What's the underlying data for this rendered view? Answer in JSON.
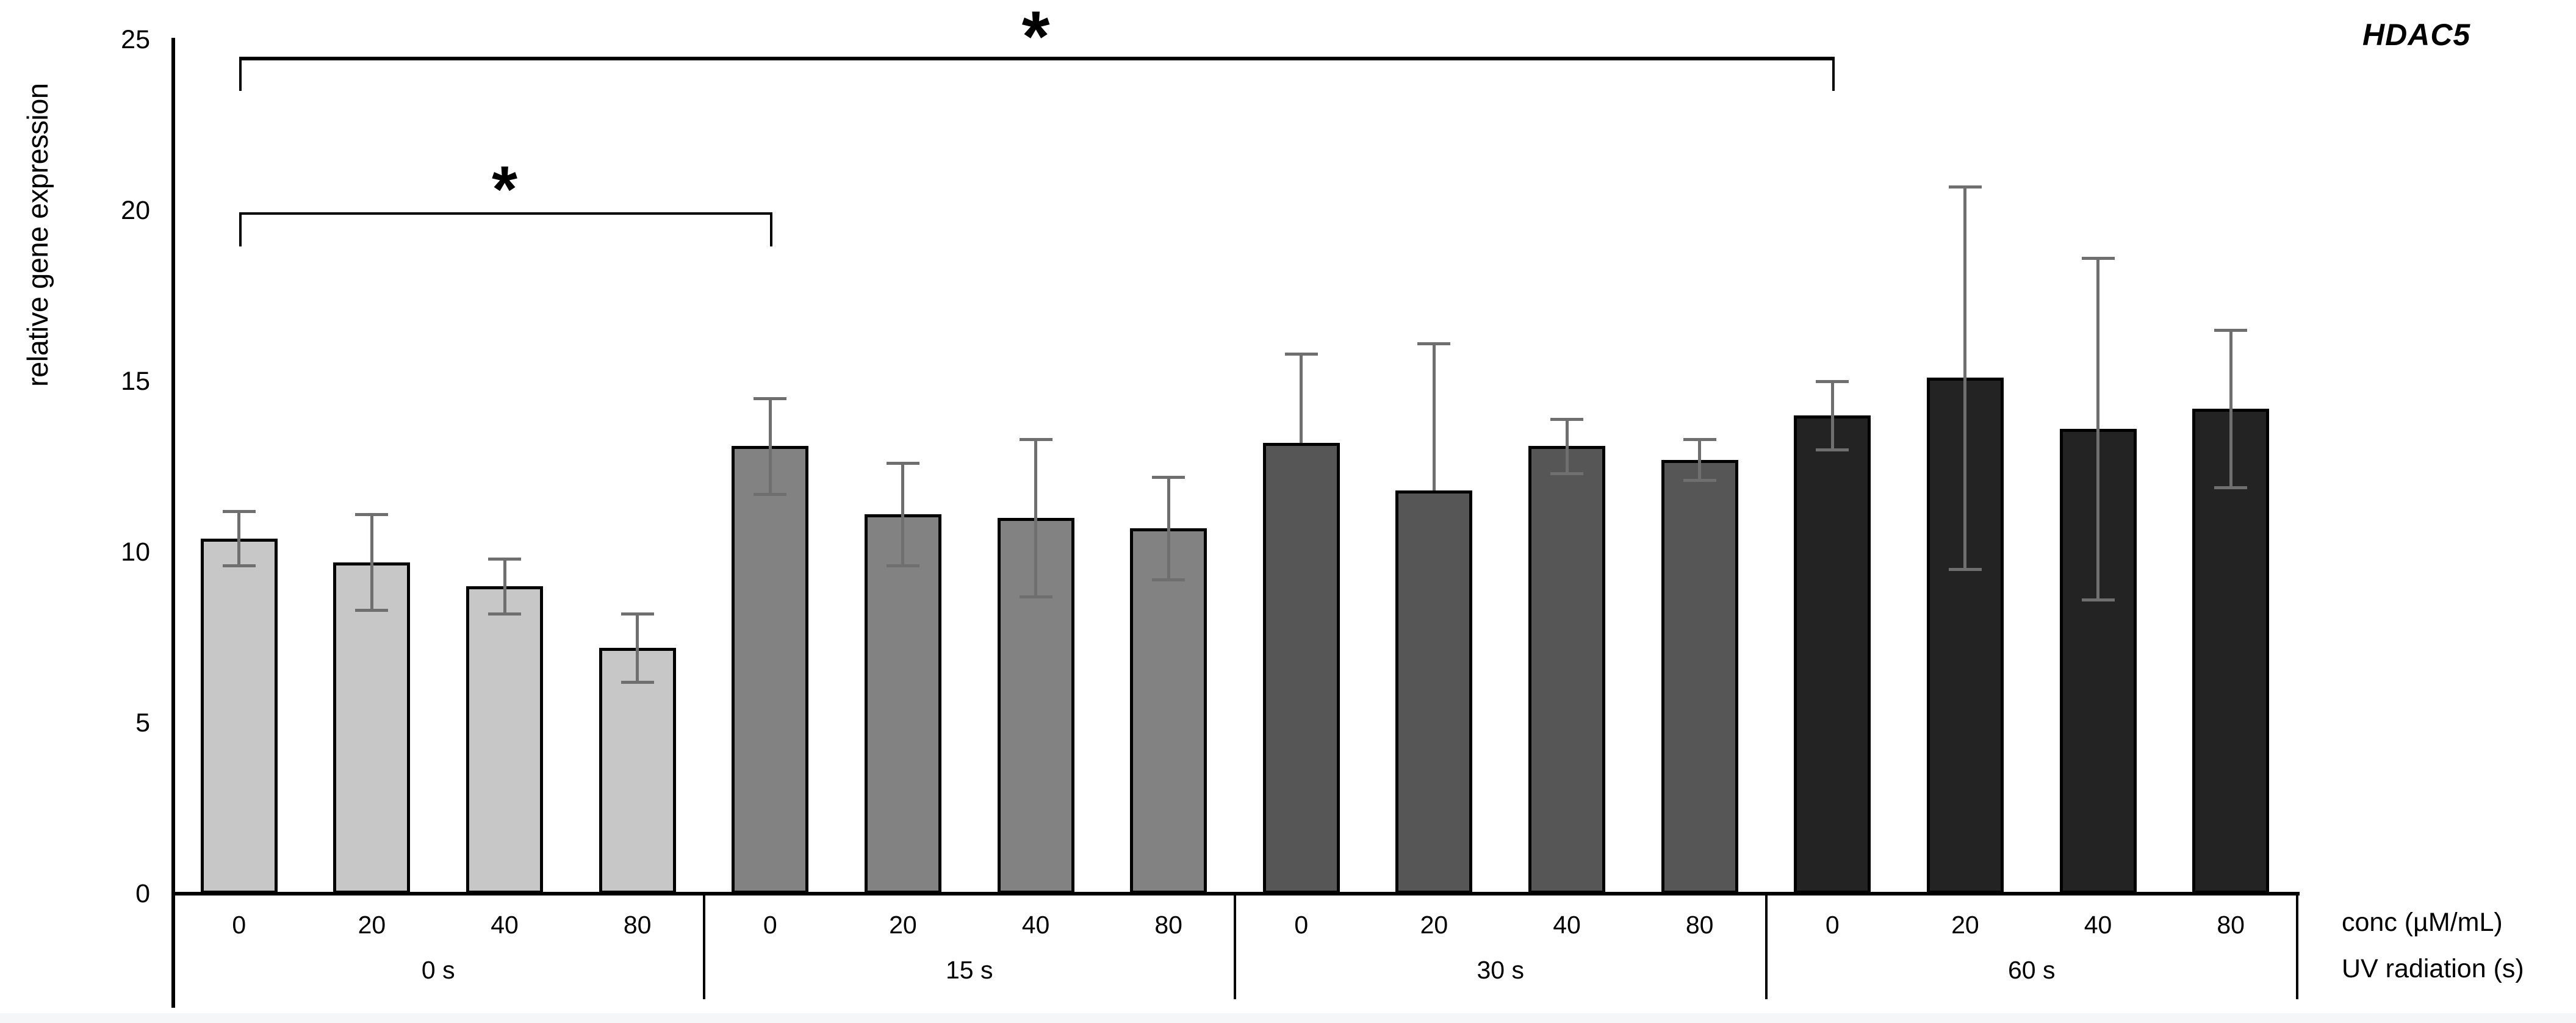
{
  "title": "HDAC5",
  "chart_data": {
    "type": "bar",
    "title": "HDAC5",
    "ylabel": "relative gene expression",
    "ylim": [
      0,
      25
    ],
    "yticks": [
      0,
      5,
      10,
      15,
      20,
      25
    ],
    "bar_axis_label": "conc (µM/mL)",
    "group_axis_label": "UV radiation (s)",
    "grid": false,
    "legend": "none",
    "error_bar_color": "#6f6f6f",
    "categories": [
      "0",
      "20",
      "40",
      "80"
    ],
    "groups": [
      {
        "label": "0 s",
        "color": "#c7c7c7",
        "bars": [
          {
            "conc": "0",
            "value": 10.4,
            "err_up": 0.8,
            "err_down": 0.8
          },
          {
            "conc": "20",
            "value": 9.7,
            "err_up": 1.4,
            "err_down": 1.4
          },
          {
            "conc": "40",
            "value": 9.0,
            "err_up": 0.8,
            "err_down": 0.8
          },
          {
            "conc": "80",
            "value": 7.2,
            "err_up": 1.0,
            "err_down": 1.0
          }
        ]
      },
      {
        "label": "15 s",
        "color": "#828282",
        "bars": [
          {
            "conc": "0",
            "value": 13.1,
            "err_up": 1.4,
            "err_down": 1.4
          },
          {
            "conc": "20",
            "value": 11.1,
            "err_up": 1.5,
            "err_down": 1.5
          },
          {
            "conc": "40",
            "value": 11.0,
            "err_up": 2.3,
            "err_down": 2.3
          },
          {
            "conc": "80",
            "value": 10.7,
            "err_up": 1.5,
            "err_down": 1.5
          }
        ]
      },
      {
        "label": "30 s",
        "color": "#565656",
        "bars": [
          {
            "conc": "0",
            "value": 13.2,
            "err_up": 2.6,
            "err_down": null
          },
          {
            "conc": "20",
            "value": 11.8,
            "err_up": 4.3,
            "err_down": null
          },
          {
            "conc": "40",
            "value": 13.1,
            "err_up": 0.8,
            "err_down": 0.8
          },
          {
            "conc": "80",
            "value": 12.7,
            "err_up": 0.6,
            "err_down": 0.6
          }
        ]
      },
      {
        "label": "60 s",
        "color": "#232323",
        "bars": [
          {
            "conc": "0",
            "value": 14.0,
            "err_up": 1.0,
            "err_down": 1.0
          },
          {
            "conc": "20",
            "value": 15.1,
            "err_up": 5.6,
            "err_down": 5.6
          },
          {
            "conc": "40",
            "value": 13.6,
            "err_up": 5.0,
            "err_down": 5.0
          },
          {
            "conc": "80",
            "value": 14.2,
            "err_up": 2.3,
            "err_down": 2.3
          }
        ]
      }
    ],
    "significance": [
      {
        "from": [
          0,
          0
        ],
        "to": [
          1,
          0
        ],
        "level": 19.95,
        "symbol": "*"
      },
      {
        "from": [
          0,
          0
        ],
        "to": [
          3,
          0
        ],
        "level": 24.5,
        "symbol": "*"
      }
    ]
  }
}
